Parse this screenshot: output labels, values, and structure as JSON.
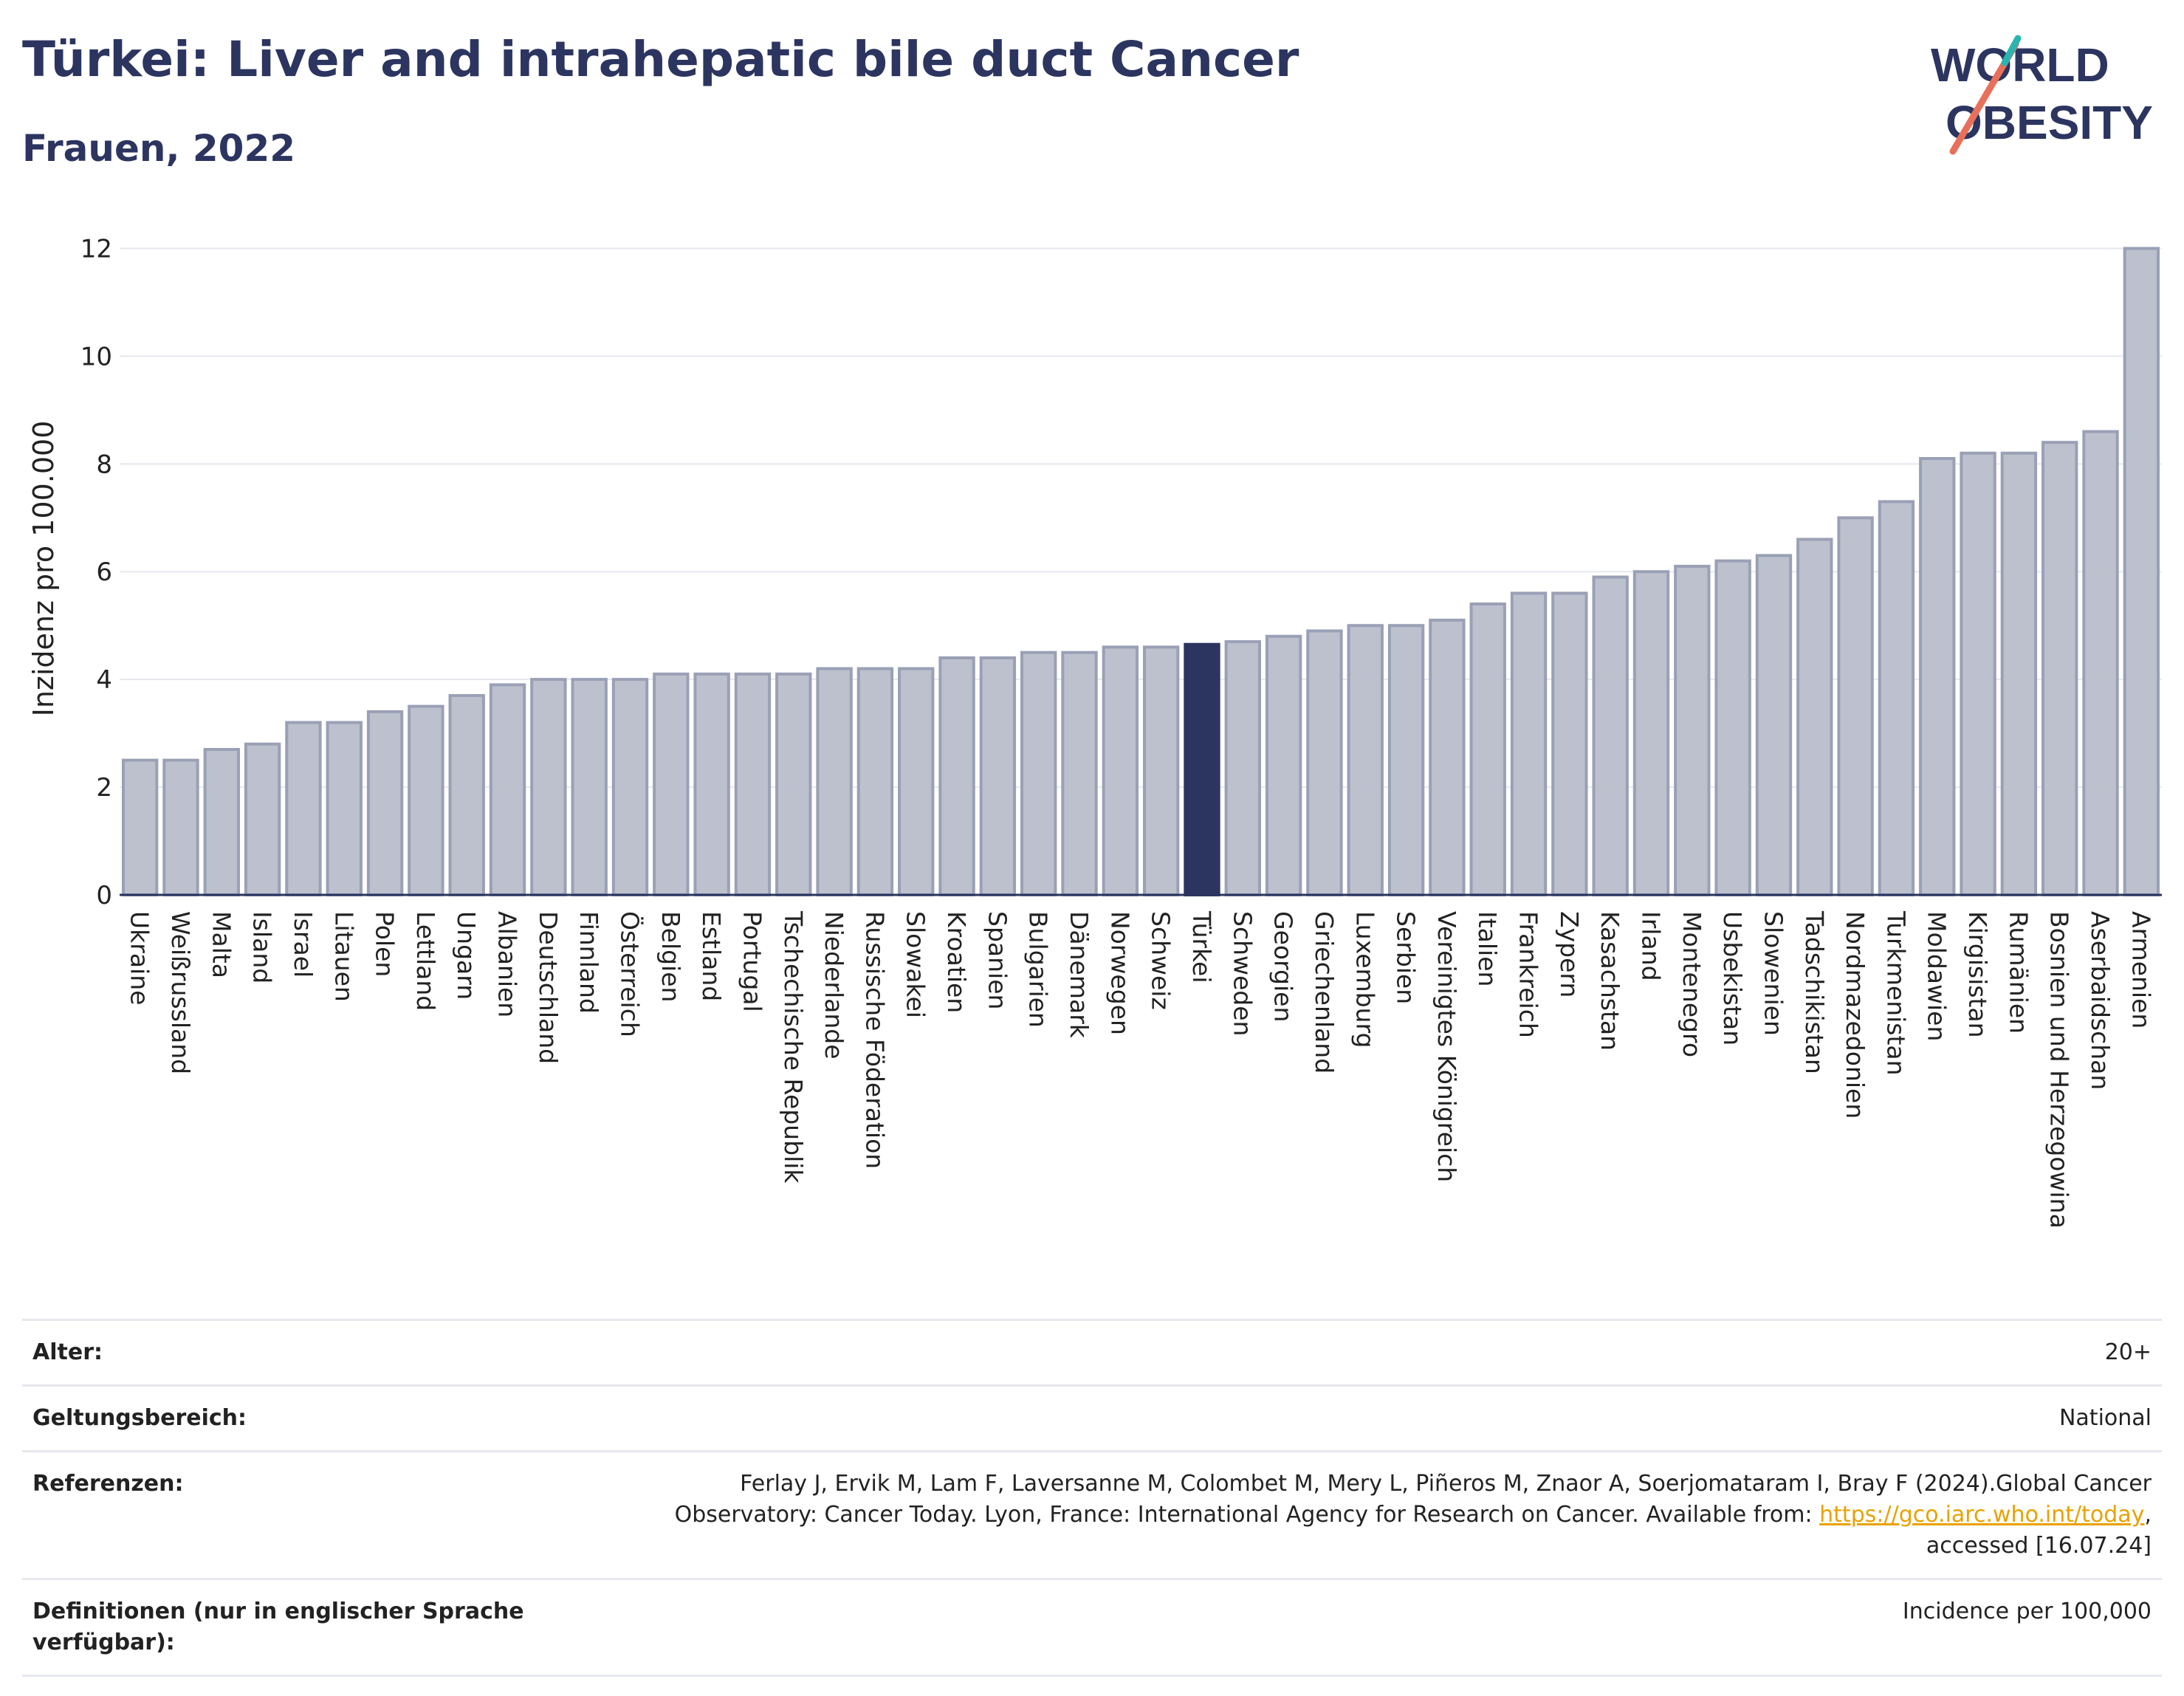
{
  "header": {
    "title": "Türkei: Liver and intrahepatic bile duct Cancer",
    "subtitle": "Frauen, 2022"
  },
  "logo": {
    "line1": "WORLD",
    "line2": "OBESITY"
  },
  "colors": {
    "bar": "#bdc1ce",
    "bar_border": "#9aa0b5",
    "highlight": "#2c3560",
    "grid": "#e6e8ee",
    "axis_text": "#222222",
    "link": "#e8a200"
  },
  "chart_data": {
    "type": "bar",
    "ylabel": "Inzidenz pro 100.000",
    "ylim": [
      0,
      12.5
    ],
    "yticks": [
      0,
      2,
      4,
      6,
      8,
      10,
      12
    ],
    "highlight": "Türkei",
    "grid": true,
    "categories": [
      "Ukraine",
      "Weißrussland",
      "Malta",
      "Island",
      "Israel",
      "Litauen",
      "Polen",
      "Lettland",
      "Ungarn",
      "Albanien",
      "Deutschland",
      "Finnland",
      "Österreich",
      "Belgien",
      "Estland",
      "Portugal",
      "Tschechische Republik",
      "Niederlande",
      "Russische Föderation",
      "Slowakei",
      "Kroatien",
      "Spanien",
      "Bulgarien",
      "Dänemark",
      "Norwegen",
      "Schweiz",
      "Türkei",
      "Schweden",
      "Georgien",
      "Griechenland",
      "Luxemburg",
      "Serbien",
      "Vereinigtes Königreich",
      "Italien",
      "Frankreich",
      "Zypern",
      "Kasachstan",
      "Irland",
      "Montenegro",
      "Usbekistan",
      "Slowenien",
      "Tadschikistan",
      "Nordmazedonien",
      "Turkmenistan",
      "Moldawien",
      "Kirgisistan",
      "Rumänien",
      "Bosnien und Herzegowina",
      "Aserbaidschan",
      "Armenien"
    ],
    "values": [
      2.5,
      2.5,
      2.7,
      2.8,
      3.2,
      3.2,
      3.4,
      3.5,
      3.7,
      3.9,
      4.0,
      4.0,
      4.0,
      4.1,
      4.1,
      4.1,
      4.1,
      4.2,
      4.2,
      4.2,
      4.4,
      4.4,
      4.5,
      4.5,
      4.6,
      4.6,
      4.65,
      4.7,
      4.8,
      4.9,
      5.0,
      5.0,
      5.1,
      5.4,
      5.6,
      5.6,
      5.9,
      6.0,
      6.1,
      6.2,
      6.3,
      6.6,
      7.0,
      7.3,
      8.1,
      8.2,
      8.2,
      8.4,
      8.6,
      12.0
    ]
  },
  "meta": {
    "rows": [
      {
        "key": "Alter:",
        "value": "20+"
      },
      {
        "key": "Geltungsbereich:",
        "value": "National"
      },
      {
        "key": "Referenzen:",
        "value_pre": "Ferlay J, Ervik M, Lam F, Laversanne M, Colombet M, Mery L, Piñeros M, Znaor A, Soerjomataram I, Bray F (2024).Global Cancer Observatory: Cancer Today. Lyon, France: International Agency for Research on Cancer. Available from: ",
        "link": "https://gco.iarc.who.int/today",
        "value_post": ", accessed [16.07.24]"
      },
      {
        "key": "Definitionen (nur in englischer Sprache verfügbar):",
        "value": "Incidence per 100,000"
      }
    ]
  }
}
